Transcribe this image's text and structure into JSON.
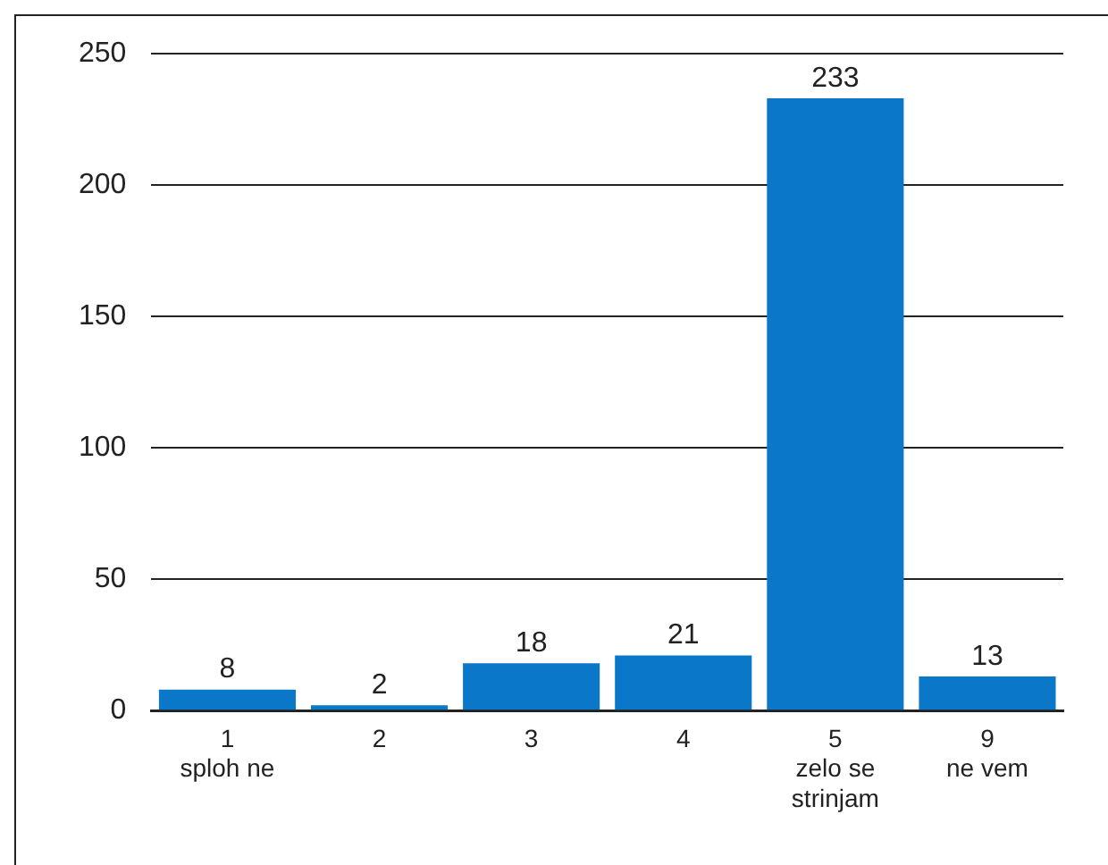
{
  "chart_data": {
    "type": "bar",
    "categories": [
      "1\nsploh ne",
      "2",
      "3",
      "4",
      "5\nzelo se\nstrinjam",
      "9\nne vem"
    ],
    "values": [
      8,
      2,
      18,
      21,
      233,
      13
    ],
    "color": "#0a77c8",
    "ylim": [
      0,
      250
    ],
    "yticks": [
      0,
      50,
      100,
      150,
      200,
      250
    ],
    "grid": "y",
    "legend": false,
    "data_labels": true
  }
}
